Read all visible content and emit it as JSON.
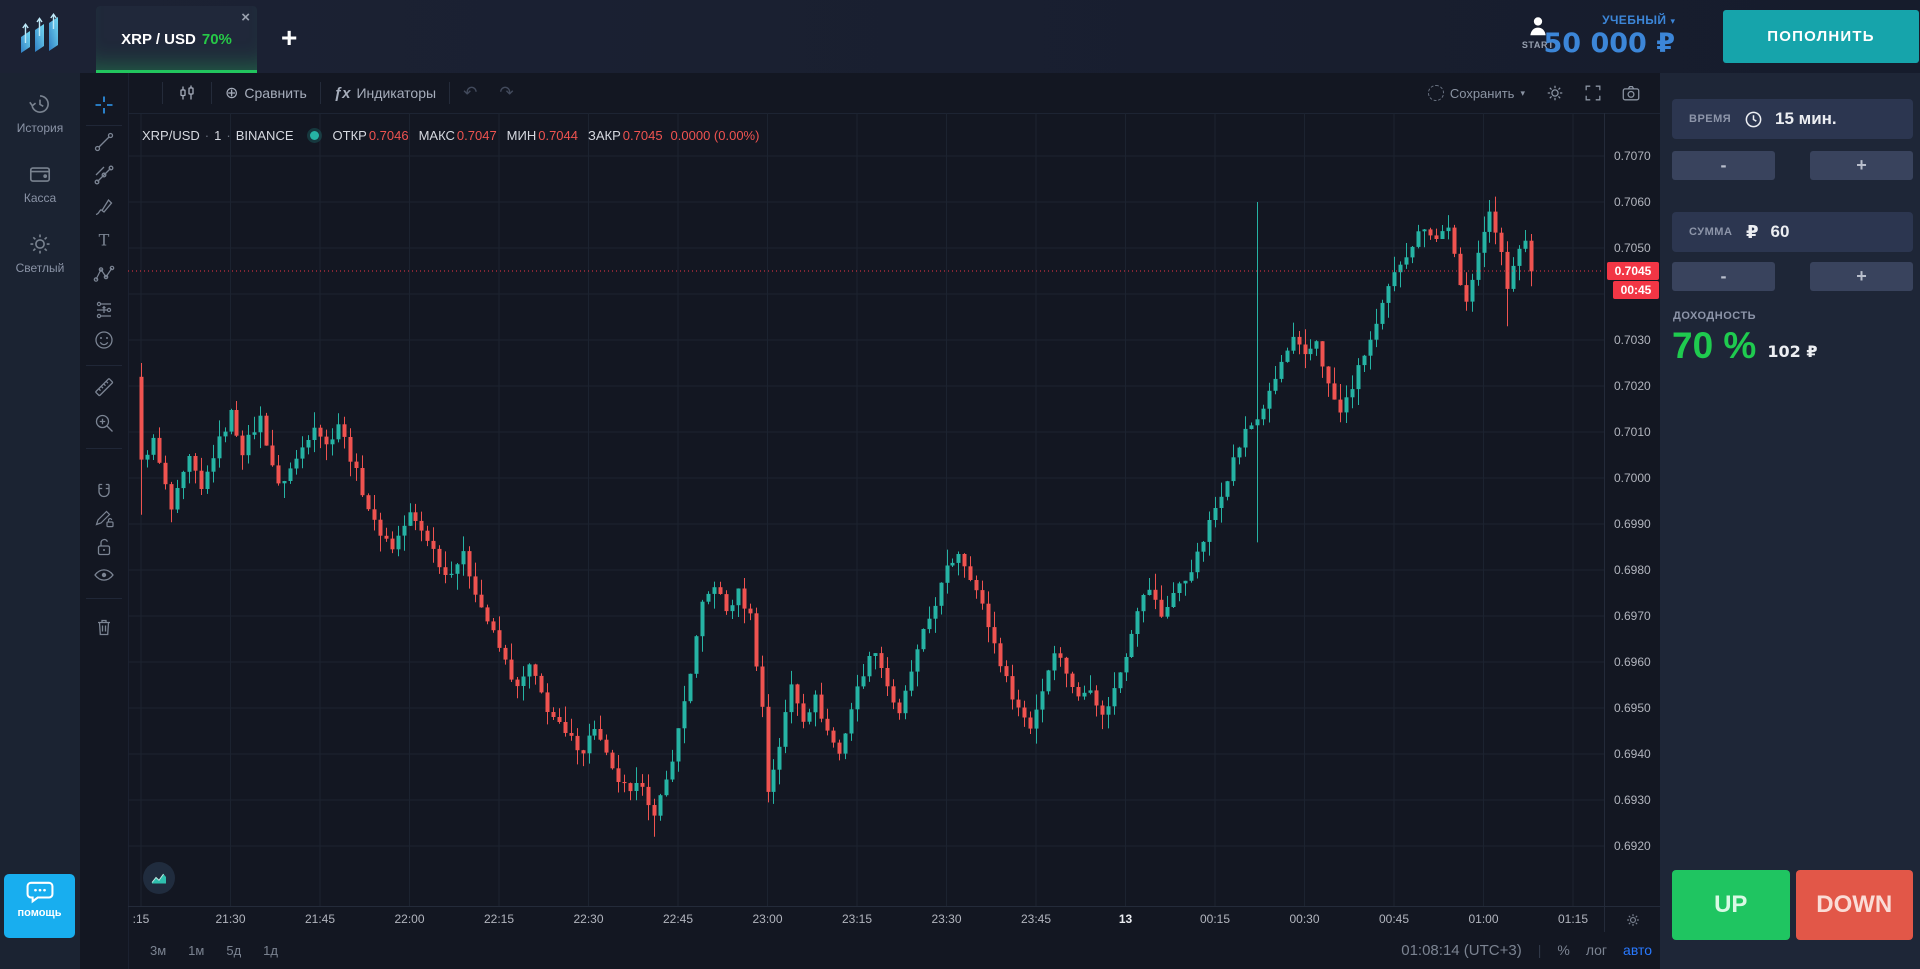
{
  "topbar": {
    "tab": {
      "pair": "XRP / USD",
      "payout": "70%",
      "close_glyph": "×"
    },
    "add_glyph": "+",
    "user": {
      "label": "START"
    },
    "account_type": "УЧЕБНЫЙ",
    "account_caret": "▾",
    "balance": "50 000 ₽",
    "deposit_button": "ПОПОЛНИТЬ"
  },
  "sidebar": {
    "items": [
      {
        "label": "История"
      },
      {
        "label": "Касса"
      },
      {
        "label": "Светлый"
      }
    ],
    "help_label": "помощь"
  },
  "chart": {
    "toolbar": {
      "interval": "1M",
      "compare_glyph": "⊕",
      "compare": "Сравнить",
      "fx_glyph": "ƒx",
      "indicators": "Индикаторы",
      "undo_glyph": "↶",
      "redo_glyph": "↷",
      "save": "Сохранить",
      "save_caret": "▾"
    },
    "legend": {
      "symbol": "XRP/USD",
      "sep": "·",
      "interval": "1",
      "exchange": "BINANCE",
      "open_label": "ОТКР",
      "open": "0.7046",
      "high_label": "МАКС",
      "high": "0.7047",
      "low_label": "МИН",
      "low": "0.7044",
      "close_label": "ЗАКР",
      "close": "0.7045",
      "change": "0.0000 (0.00%)"
    },
    "current": {
      "price": "0.7045",
      "countdown": "00:45"
    },
    "price_axis": [
      "0.7070",
      "0.7060",
      "0.7050",
      "0.7030",
      "0.7020",
      "0.7010",
      "0.7000",
      "0.6990",
      "0.6980",
      "0.6970",
      "0.6960",
      "0.6950",
      "0.6940",
      "0.6930",
      "0.6920"
    ],
    "bottom": {
      "ranges": [
        "3м",
        "1м",
        "5д",
        "1д"
      ],
      "clock": "01:08:14 (UTC+3)",
      "sep": "|",
      "percent": "%",
      "log": "лог",
      "auto": "авто"
    }
  },
  "trade_panel": {
    "time_label": "ВРЕМЯ",
    "time_value": "15 мин.",
    "amount_label": "СУММА",
    "amount_currency": "₽",
    "amount_value": "60",
    "minus": "-",
    "plus": "+",
    "payout_label": "ДОХОДНОСТЬ",
    "payout_percent": "70 %",
    "payout_amount": "102 ₽",
    "up_button": "UP",
    "down_button": "DOWN"
  },
  "chart_data": {
    "type": "candlestick",
    "symbol": "XRP/USD",
    "exchange": "BINANCE",
    "interval_minutes": 1,
    "title": "XRP/USD 1m BINANCE",
    "y_min": 0.692,
    "y_max": 0.707,
    "grid_step": 0.001,
    "x_start": "21:15",
    "x_end": "01:15",
    "current_price": 0.7045,
    "first_open": 0.7022,
    "noise_amp": 0.00012,
    "wick_amp": 0.00035,
    "colors": {
      "up": "#26b3a4",
      "down": "#ef5350",
      "grid": "#1c2330",
      "price_line": "#f23645"
    },
    "time_axis": [
      {
        "m": 0,
        "label": ":15"
      },
      {
        "m": 15,
        "label": "21:30"
      },
      {
        "m": 30,
        "label": "21:45"
      },
      {
        "m": 45,
        "label": "22:00"
      },
      {
        "m": 60,
        "label": "22:15"
      },
      {
        "m": 75,
        "label": "22:30"
      },
      {
        "m": 90,
        "label": "22:45"
      },
      {
        "m": 105,
        "label": "23:00"
      },
      {
        "m": 120,
        "label": "23:15"
      },
      {
        "m": 135,
        "label": "23:30"
      },
      {
        "m": 150,
        "label": "23:45"
      },
      {
        "m": 165,
        "label": "13",
        "bold": true
      },
      {
        "m": 180,
        "label": "00:15"
      },
      {
        "m": 195,
        "label": "00:30"
      },
      {
        "m": 210,
        "label": "00:45"
      },
      {
        "m": 225,
        "label": "01:00"
      },
      {
        "m": 240,
        "label": "01:15"
      }
    ],
    "anchors": [
      [
        0,
        0.7004
      ],
      [
        2,
        0.7008
      ],
      [
        5,
        0.6993
      ],
      [
        8,
        0.7004
      ],
      [
        10,
        0.6997
      ],
      [
        12,
        0.7005
      ],
      [
        15,
        0.7014
      ],
      [
        17,
        0.7006
      ],
      [
        20,
        0.7013
      ],
      [
        23,
        0.6998
      ],
      [
        26,
        0.7004
      ],
      [
        29,
        0.7012
      ],
      [
        31,
        0.7007
      ],
      [
        33,
        0.7012
      ],
      [
        36,
        0.7001
      ],
      [
        39,
        0.699
      ],
      [
        42,
        0.6985
      ],
      [
        45,
        0.6992
      ],
      [
        48,
        0.6987
      ],
      [
        51,
        0.6979
      ],
      [
        54,
        0.6983
      ],
      [
        57,
        0.6972
      ],
      [
        60,
        0.6963
      ],
      [
        63,
        0.6954
      ],
      [
        65,
        0.6959
      ],
      [
        68,
        0.695
      ],
      [
        71,
        0.6944
      ],
      [
        74,
        0.6941
      ],
      [
        76,
        0.6946
      ],
      [
        79,
        0.6936
      ],
      [
        82,
        0.6931
      ],
      [
        84,
        0.6934
      ],
      [
        86,
        0.6926
      ],
      [
        88,
        0.6934
      ],
      [
        90,
        0.6945
      ],
      [
        92,
        0.6958
      ],
      [
        94,
        0.6972
      ],
      [
        96,
        0.6977
      ],
      [
        98,
        0.6971
      ],
      [
        100,
        0.6975
      ],
      [
        102,
        0.697
      ],
      [
        104,
        0.695
      ],
      [
        105,
        0.6932
      ],
      [
        107,
        0.6942
      ],
      [
        109,
        0.6955
      ],
      [
        111,
        0.6948
      ],
      [
        113,
        0.6952
      ],
      [
        115,
        0.6945
      ],
      [
        117,
        0.694
      ],
      [
        119,
        0.695
      ],
      [
        121,
        0.6958
      ],
      [
        123,
        0.6963
      ],
      [
        125,
        0.6955
      ],
      [
        127,
        0.6948
      ],
      [
        129,
        0.6958
      ],
      [
        131,
        0.6966
      ],
      [
        133,
        0.6973
      ],
      [
        135,
        0.698
      ],
      [
        137,
        0.6984
      ],
      [
        139,
        0.6979
      ],
      [
        141,
        0.6972
      ],
      [
        143,
        0.6964
      ],
      [
        145,
        0.6956
      ],
      [
        147,
        0.695
      ],
      [
        149,
        0.6946
      ],
      [
        151,
        0.6954
      ],
      [
        153,
        0.6963
      ],
      [
        155,
        0.6958
      ],
      [
        157,
        0.6952
      ],
      [
        159,
        0.6955
      ],
      [
        161,
        0.6948
      ],
      [
        163,
        0.6954
      ],
      [
        165,
        0.6962
      ],
      [
        167,
        0.6972
      ],
      [
        169,
        0.6976
      ],
      [
        171,
        0.697
      ],
      [
        173,
        0.6975
      ],
      [
        175,
        0.6978
      ],
      [
        177,
        0.6983
      ],
      [
        179,
        0.699
      ],
      [
        181,
        0.6997
      ],
      [
        183,
        0.7004
      ],
      [
        185,
        0.701
      ],
      [
        187,
        0.7013
      ],
      [
        189,
        0.7018
      ],
      [
        191,
        0.7025
      ],
      [
        193,
        0.703
      ],
      [
        195,
        0.7026
      ],
      [
        197,
        0.703
      ],
      [
        199,
        0.702
      ],
      [
        201,
        0.7014
      ],
      [
        203,
        0.702
      ],
      [
        205,
        0.7027
      ],
      [
        207,
        0.7033
      ],
      [
        209,
        0.7041
      ],
      [
        211,
        0.7047
      ],
      [
        213,
        0.7051
      ],
      [
        215,
        0.7055
      ],
      [
        217,
        0.7052
      ],
      [
        219,
        0.7055
      ],
      [
        221,
        0.7041
      ],
      [
        222,
        0.7038
      ],
      [
        224,
        0.705
      ],
      [
        226,
        0.7057
      ],
      [
        228,
        0.705
      ],
      [
        229,
        0.7042
      ],
      [
        231,
        0.7049
      ],
      [
        232,
        0.7052
      ],
      [
        233,
        0.7045
      ]
    ],
    "spikes": [
      {
        "index": 0,
        "high": 0.7025,
        "low": 0.6992
      },
      {
        "index": 86,
        "low": 0.6922
      },
      {
        "index": 187,
        "high": 0.706,
        "low": 0.6986
      },
      {
        "index": 229,
        "low": 0.7033
      }
    ]
  }
}
